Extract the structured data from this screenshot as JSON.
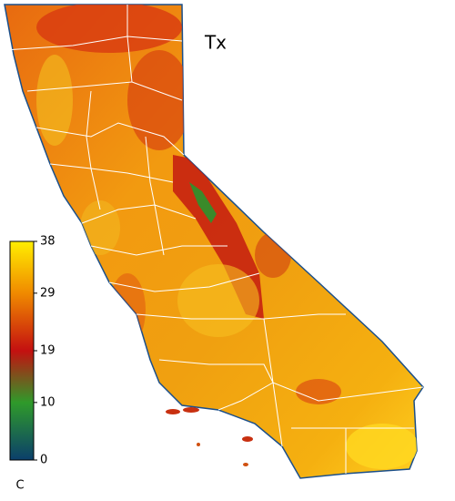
{
  "map": {
    "title": "Tx",
    "colorbar": {
      "lim": [
        0,
        38
      ],
      "ticks": [
        0,
        10,
        19,
        29,
        38
      ],
      "colors": [
        "#0b3f6b",
        "#2f9a2a",
        "#c41010",
        "#f08a00",
        "#ffee00"
      ],
      "unit": "C"
    }
  }
}
